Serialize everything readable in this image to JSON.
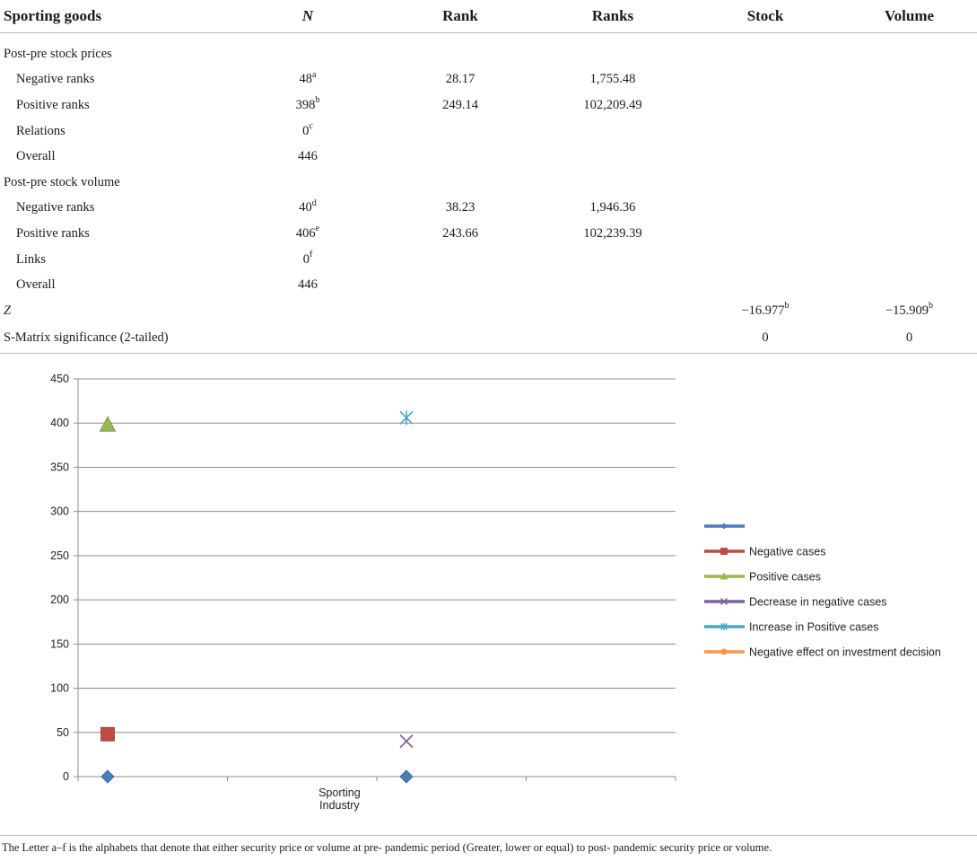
{
  "table": {
    "headers": [
      "Sporting goods",
      "N",
      "Rank",
      "Ranks",
      "Stock",
      "Volume"
    ],
    "rows": [
      {
        "label": "Post-pre stock prices",
        "n": "",
        "n_sup": "",
        "rank": "",
        "ranks": "",
        "stock": "",
        "stock_sup": "",
        "volume": "",
        "volume_sup": ""
      },
      {
        "label": "Negative ranks",
        "n": "48",
        "n_sup": "a",
        "rank": "28.17",
        "ranks": "1,755.48",
        "stock": "",
        "stock_sup": "",
        "volume": "",
        "volume_sup": ""
      },
      {
        "label": "Positive ranks",
        "n": "398",
        "n_sup": "b",
        "rank": "249.14",
        "ranks": "102,209.49",
        "stock": "",
        "stock_sup": "",
        "volume": "",
        "volume_sup": ""
      },
      {
        "label": "Relations",
        "n": "0",
        "n_sup": "c",
        "rank": "",
        "ranks": "",
        "stock": "",
        "stock_sup": "",
        "volume": "",
        "volume_sup": ""
      },
      {
        "label": "Overall",
        "n": "446",
        "n_sup": "",
        "rank": "",
        "ranks": "",
        "stock": "",
        "stock_sup": "",
        "volume": "",
        "volume_sup": ""
      },
      {
        "label": "Post-pre stock volume",
        "n": "",
        "n_sup": "",
        "rank": "",
        "ranks": "",
        "stock": "",
        "stock_sup": "",
        "volume": "",
        "volume_sup": ""
      },
      {
        "label": "Negative ranks",
        "n": "40",
        "n_sup": "d",
        "rank": "38.23",
        "ranks": "1,946.36",
        "stock": "",
        "stock_sup": "",
        "volume": "",
        "volume_sup": ""
      },
      {
        "label": "Positive ranks",
        "n": "406",
        "n_sup": "e",
        "rank": "243.66",
        "ranks": "102,239.39",
        "stock": "",
        "stock_sup": "",
        "volume": "",
        "volume_sup": ""
      },
      {
        "label": "Links",
        "n": "0",
        "n_sup": "f",
        "rank": "",
        "ranks": "",
        "stock": "",
        "stock_sup": "",
        "volume": "",
        "volume_sup": ""
      },
      {
        "label": "Overall",
        "n": "446",
        "n_sup": "",
        "rank": "",
        "ranks": "",
        "stock": "",
        "stock_sup": "",
        "volume": "",
        "volume_sup": ""
      },
      {
        "label": "Z",
        "n": "",
        "n_sup": "",
        "rank": "",
        "ranks": "",
        "stock": "−16.977",
        "stock_sup": "b",
        "volume": "−15.909",
        "volume_sup": "b"
      },
      {
        "label": "S-Matrix significance (2-tailed)",
        "n": "",
        "n_sup": "",
        "rank": "",
        "ranks": "",
        "stock": "0",
        "stock_sup": "",
        "volume": "0",
        "volume_sup": ""
      }
    ]
  },
  "chart_data": {
    "type": "scatter",
    "title": "",
    "xlabel": "",
    "ylabel": "",
    "categories": [
      "Sporting Industry"
    ],
    "ylim": [
      0,
      450
    ],
    "y_ticks": [
      0,
      50,
      100,
      150,
      200,
      250,
      300,
      350,
      400,
      450
    ],
    "grid": true,
    "legend_position": "right",
    "series": [
      {
        "name": "",
        "marker": "diamond",
        "color": "#4a7ebb",
        "points": [
          {
            "x_slot": 1,
            "y": 0
          },
          {
            "x_slot": 3,
            "y": 0
          }
        ]
      },
      {
        "name": "Negative cases",
        "marker": "square",
        "color": "#be4b48",
        "points": [
          {
            "x_slot": 1,
            "y": 48
          }
        ]
      },
      {
        "name": "Positive cases",
        "marker": "triangle",
        "color": "#98b954",
        "points": [
          {
            "x_slot": 1,
            "y": 398
          }
        ]
      },
      {
        "name": "Decrease in negative cases",
        "marker": "x",
        "color": "#7d60a0",
        "points": [
          {
            "x_slot": 3,
            "y": 40
          }
        ]
      },
      {
        "name": "Increase in Positive cases",
        "marker": "star",
        "color": "#46aac5",
        "points": [
          {
            "x_slot": 3,
            "y": 406
          }
        ]
      },
      {
        "name": "Negative effect on investment decision",
        "marker": "circle",
        "color": "#f79646",
        "points": []
      }
    ]
  },
  "footnote": "The Letter a–f is the alphabets that denote that either security price or volume at pre- pandemic period (Greater, lower or equal) to post- pandemic security price or volume."
}
